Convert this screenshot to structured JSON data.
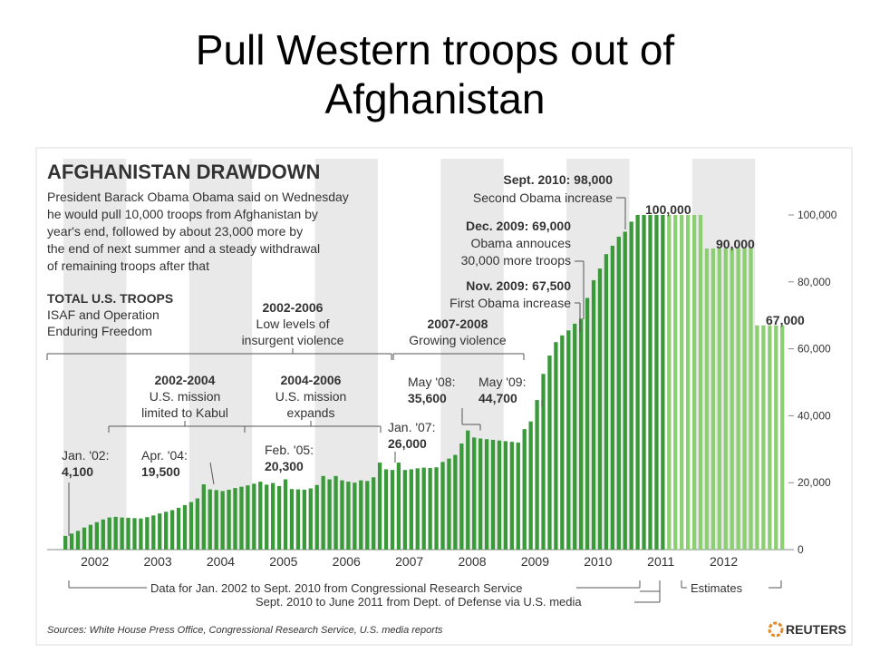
{
  "slide": {
    "title_line1": "Pull Western troops out of",
    "title_line2": "Afghanistan"
  },
  "chart_data": {
    "type": "bar",
    "title": "AFGHANISTAN DRAWDOWN",
    "description": [
      "President Barack Obama Obama said on Wednesday",
      "he would pull 10,000 troops from Afghanistan by",
      "year's end, followed by about 23,000 more by",
      "the end of next summer and a steady withdrawal",
      "of remaining troops after that"
    ],
    "series_label": [
      "TOTAL U.S. TROOPS",
      "ISAF and Operation",
      "Enduring Freedom"
    ],
    "x_range": [
      2002.0,
      2013.0
    ],
    "ylim": [
      0,
      110000
    ],
    "y_ticks": [
      {
        "value": 0,
        "label": "0"
      },
      {
        "value": 20000,
        "label": "20,000"
      },
      {
        "value": 40000,
        "label": "40,000"
      },
      {
        "value": 60000,
        "label": "60,000"
      },
      {
        "value": 80000,
        "label": "80,000"
      },
      {
        "value": 100000,
        "label": "100,000"
      }
    ],
    "year_labels": [
      "2002",
      "2003",
      "2004",
      "2005",
      "2006",
      "2007",
      "2008",
      "2009",
      "2010",
      "2011",
      "2012"
    ],
    "shaded_years": [
      "2002",
      "2004",
      "2006",
      "2008",
      "2010",
      "2012"
    ],
    "series": [
      {
        "name": "actual",
        "values": [
          {
            "t": 2002.0,
            "v": 4100
          },
          {
            "t": 2002.1,
            "v": 4800
          },
          {
            "t": 2002.2,
            "v": 5600
          },
          {
            "t": 2002.3,
            "v": 6600
          },
          {
            "t": 2002.4,
            "v": 7400
          },
          {
            "t": 2002.5,
            "v": 8200
          },
          {
            "t": 2002.6,
            "v": 9000
          },
          {
            "t": 2002.7,
            "v": 9600
          },
          {
            "t": 2002.8,
            "v": 9800
          },
          {
            "t": 2002.9,
            "v": 9600
          },
          {
            "t": 2003.0,
            "v": 9500
          },
          {
            "t": 2003.1,
            "v": 9400
          },
          {
            "t": 2003.2,
            "v": 9300
          },
          {
            "t": 2003.3,
            "v": 9700
          },
          {
            "t": 2003.4,
            "v": 10200
          },
          {
            "t": 2003.5,
            "v": 10800
          },
          {
            "t": 2003.6,
            "v": 11300
          },
          {
            "t": 2003.7,
            "v": 11800
          },
          {
            "t": 2003.8,
            "v": 12500
          },
          {
            "t": 2003.9,
            "v": 13300
          },
          {
            "t": 2004.0,
            "v": 14200
          },
          {
            "t": 2004.1,
            "v": 15300
          },
          {
            "t": 2004.2,
            "v": 19500
          },
          {
            "t": 2004.3,
            "v": 18000
          },
          {
            "t": 2004.4,
            "v": 17800
          },
          {
            "t": 2004.5,
            "v": 17500
          },
          {
            "t": 2004.6,
            "v": 17900
          },
          {
            "t": 2004.7,
            "v": 18400
          },
          {
            "t": 2004.8,
            "v": 18800
          },
          {
            "t": 2004.9,
            "v": 19200
          },
          {
            "t": 2005.0,
            "v": 19700
          },
          {
            "t": 2005.1,
            "v": 20300
          },
          {
            "t": 2005.2,
            "v": 19400
          },
          {
            "t": 2005.3,
            "v": 19900
          },
          {
            "t": 2005.4,
            "v": 19000
          },
          {
            "t": 2005.5,
            "v": 21000
          },
          {
            "t": 2005.6,
            "v": 18100
          },
          {
            "t": 2005.7,
            "v": 18000
          },
          {
            "t": 2005.8,
            "v": 17900
          },
          {
            "t": 2005.9,
            "v": 18300
          },
          {
            "t": 2006.0,
            "v": 19300
          },
          {
            "t": 2006.1,
            "v": 22000
          },
          {
            "t": 2006.2,
            "v": 21000
          },
          {
            "t": 2006.3,
            "v": 22000
          },
          {
            "t": 2006.4,
            "v": 20700
          },
          {
            "t": 2006.5,
            "v": 20300
          },
          {
            "t": 2006.6,
            "v": 20000
          },
          {
            "t": 2006.7,
            "v": 20700
          },
          {
            "t": 2006.8,
            "v": 20500
          },
          {
            "t": 2006.9,
            "v": 21600
          },
          {
            "t": 2007.0,
            "v": 26000
          },
          {
            "t": 2007.1,
            "v": 24000
          },
          {
            "t": 2007.2,
            "v": 23800
          },
          {
            "t": 2007.3,
            "v": 26000
          },
          {
            "t": 2007.4,
            "v": 23800
          },
          {
            "t": 2007.5,
            "v": 24000
          },
          {
            "t": 2007.6,
            "v": 24300
          },
          {
            "t": 2007.7,
            "v": 24500
          },
          {
            "t": 2007.8,
            "v": 24400
          },
          {
            "t": 2007.9,
            "v": 24600
          },
          {
            "t": 2008.0,
            "v": 26200
          },
          {
            "t": 2008.1,
            "v": 27200
          },
          {
            "t": 2008.2,
            "v": 28300
          },
          {
            "t": 2008.3,
            "v": 31700
          },
          {
            "t": 2008.4,
            "v": 35600
          },
          {
            "t": 2008.5,
            "v": 33500
          },
          {
            "t": 2008.6,
            "v": 33200
          },
          {
            "t": 2008.7,
            "v": 33000
          },
          {
            "t": 2008.8,
            "v": 32800
          },
          {
            "t": 2008.9,
            "v": 32600
          },
          {
            "t": 2009.0,
            "v": 32400
          },
          {
            "t": 2009.1,
            "v": 32200
          },
          {
            "t": 2009.2,
            "v": 32000
          },
          {
            "t": 2009.3,
            "v": 36000
          },
          {
            "t": 2009.4,
            "v": 38300
          },
          {
            "t": 2009.5,
            "v": 44700
          },
          {
            "t": 2009.6,
            "v": 52500
          },
          {
            "t": 2009.7,
            "v": 58000
          },
          {
            "t": 2009.8,
            "v": 62000
          },
          {
            "t": 2009.9,
            "v": 64000
          },
          {
            "t": 2010.0,
            "v": 65500
          },
          {
            "t": 2010.1,
            "v": 67500
          },
          {
            "t": 2010.2,
            "v": 69000
          },
          {
            "t": 2010.3,
            "v": 75200
          },
          {
            "t": 2010.4,
            "v": 80500
          },
          {
            "t": 2010.5,
            "v": 84000
          },
          {
            "t": 2010.6,
            "v": 88300
          },
          {
            "t": 2010.7,
            "v": 90800
          },
          {
            "t": 2010.8,
            "v": 93500
          },
          {
            "t": 2010.9,
            "v": 95000
          },
          {
            "t": 2011.0,
            "v": 98000
          },
          {
            "t": 2011.1,
            "v": 100000
          },
          {
            "t": 2011.2,
            "v": 100000
          },
          {
            "t": 2011.3,
            "v": 100000
          },
          {
            "t": 2011.4,
            "v": 100000
          },
          {
            "t": 2011.5,
            "v": 100000
          }
        ]
      },
      {
        "name": "Estimates",
        "values": [
          {
            "t": 2011.6,
            "v": 100000
          },
          {
            "t": 2011.7,
            "v": 100000
          },
          {
            "t": 2011.8,
            "v": 100000
          },
          {
            "t": 2011.9,
            "v": 100000
          },
          {
            "t": 2012.0,
            "v": 100000
          },
          {
            "t": 2012.1,
            "v": 100000
          },
          {
            "t": 2012.2,
            "v": 90000
          },
          {
            "t": 2012.3,
            "v": 90000
          },
          {
            "t": 2012.4,
            "v": 90000
          },
          {
            "t": 2012.5,
            "v": 90000
          },
          {
            "t": 2012.6,
            "v": 90000
          },
          {
            "t": 2012.7,
            "v": 90000
          },
          {
            "t": 2012.8,
            "v": 90000
          },
          {
            "t": 2012.9,
            "v": 90000
          },
          {
            "t": 2013.0,
            "v": 67000
          },
          {
            "t": 2013.1,
            "v": 67000
          },
          {
            "t": 2013.2,
            "v": 67000
          },
          {
            "t": 2013.3,
            "v": 67000
          },
          {
            "t": 2013.4,
            "v": 67000
          }
        ]
      }
    ],
    "value_labels": [
      {
        "id": "jan02",
        "lines": [
          "Jan. '02:",
          "4,100"
        ]
      },
      {
        "id": "apr04",
        "lines": [
          "Apr. '04:",
          "19,500"
        ]
      },
      {
        "id": "feb05",
        "lines": [
          "Feb. '05:",
          "20,300"
        ]
      },
      {
        "id": "jan07",
        "lines": [
          "Jan. '07:",
          "26,000"
        ]
      },
      {
        "id": "may08",
        "lines": [
          "May '08:",
          "35,600"
        ]
      },
      {
        "id": "may09",
        "lines": [
          "May '09:",
          "44,700"
        ]
      },
      {
        "id": "nov09",
        "lines": [
          "Nov. 2009: 67,500",
          "First Obama increase"
        ]
      },
      {
        "id": "dec09",
        "lines": [
          "Dec. 2009: 69,000",
          "Obama annouces",
          "30,000 more troops"
        ]
      },
      {
        "id": "sep10",
        "lines": [
          "Sept. 2010: 98,000",
          "Second Obama increase"
        ]
      },
      {
        "id": "v100k",
        "lines": [
          "100,000"
        ]
      },
      {
        "id": "v90k",
        "lines": [
          "90,000"
        ]
      },
      {
        "id": "v67k",
        "lines": [
          "67,000"
        ]
      }
    ],
    "periods": [
      {
        "id": "p0204",
        "lines": [
          "2002-2004",
          "U.S. mission",
          "limited to Kabul"
        ]
      },
      {
        "id": "p0406",
        "lines": [
          "2004-2006",
          "U.S. mission",
          "expands"
        ]
      },
      {
        "id": "p0206",
        "lines": [
          "2002-2006",
          "Low levels of",
          "insurgent violence"
        ]
      },
      {
        "id": "p0708",
        "lines": [
          "2007-2008",
          "Growing violence"
        ]
      }
    ],
    "footnotes": [
      "Data for Jan. 2002 to Sept. 2010 from Congressional Research Service",
      "Sept. 2010 to June 2011 from Dept. of Defense via U.S. media",
      "Estimates"
    ],
    "sources": "Sources: White House Press Office, Congressional Research Service, U.S. media reports",
    "logo": "REUTERS",
    "colors": {
      "bar": "#3a9a3a",
      "bar_estimate": "#8ccf72",
      "shade": "#e9e9e9",
      "text": "#333333",
      "accent": "#e08a2a"
    }
  }
}
